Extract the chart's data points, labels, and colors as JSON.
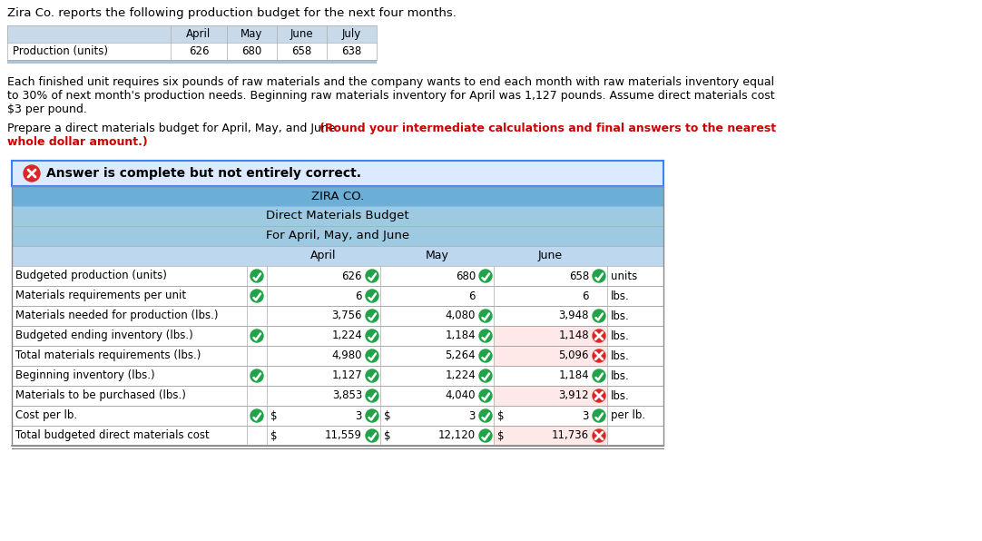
{
  "title_text": "Zira Co. reports the following production budget for the next four months.",
  "prod_table_headers": [
    "",
    "April",
    "May",
    "June",
    "July"
  ],
  "prod_table_row": [
    "Production (units)",
    "626",
    "680",
    "658",
    "638"
  ],
  "para1": "Each finished unit requires six pounds of raw materials and the company wants to end each month with raw materials inventory equal\nto 30% of next month's production needs. Beginning raw materials inventory for April was 1,127 pounds. Assume direct materials cost\n$3 per pound.",
  "para2_normal": "Prepare a direct materials budget for April, May, and June. ",
  "para2_bold_line1": "(Round your intermediate calculations and final answers to the nearest",
  "para2_bold_line2": "whole dollar amount.)",
  "answer_banner": "Answer is complete but not entirely correct.",
  "budget_title1": "ZIRA CO.",
  "budget_title2": "Direct Materials Budget",
  "budget_title3": "For April, May, and June",
  "rows": [
    {
      "label": "Budgeted production (units)",
      "check_label": true,
      "april": "626",
      "april_check": true,
      "may": "680",
      "may_check": true,
      "june": "658",
      "june_check": true,
      "june_wrong": false,
      "unit": "units",
      "has_dollar": false
    },
    {
      "label": "Materials requirements per unit",
      "check_label": true,
      "april": "6",
      "april_check": true,
      "may": "6",
      "may_check": false,
      "june": "6",
      "june_check": false,
      "june_wrong": false,
      "unit": "lbs.",
      "has_dollar": false
    },
    {
      "label": "Materials needed for production (lbs.)",
      "check_label": false,
      "april": "3,756",
      "april_check": true,
      "may": "4,080",
      "may_check": true,
      "june": "3,948",
      "june_check": true,
      "june_wrong": false,
      "unit": "lbs.",
      "has_dollar": false
    },
    {
      "label": "Budgeted ending inventory (lbs.)",
      "check_label": true,
      "april": "1,224",
      "april_check": true,
      "may": "1,184",
      "may_check": true,
      "june": "1,148",
      "june_check": false,
      "june_wrong": true,
      "unit": "lbs.",
      "has_dollar": false
    },
    {
      "label": "Total materials requirements (lbs.)",
      "check_label": false,
      "april": "4,980",
      "april_check": true,
      "may": "5,264",
      "may_check": true,
      "june": "5,096",
      "june_check": false,
      "june_wrong": true,
      "unit": "lbs.",
      "has_dollar": false
    },
    {
      "label": "Beginning inventory (lbs.)",
      "check_label": true,
      "april": "1,127",
      "april_check": true,
      "may": "1,224",
      "may_check": true,
      "june": "1,184",
      "june_check": true,
      "june_wrong": false,
      "unit": "lbs.",
      "has_dollar": false
    },
    {
      "label": "Materials to be purchased (lbs.)",
      "check_label": false,
      "april": "3,853",
      "april_check": true,
      "may": "4,040",
      "may_check": true,
      "june": "3,912",
      "june_check": false,
      "june_wrong": true,
      "unit": "lbs.",
      "has_dollar": false
    },
    {
      "label": "Cost per lb.",
      "check_label": true,
      "april": "3",
      "april_check": true,
      "may": "3",
      "may_check": true,
      "june": "3",
      "june_check": true,
      "june_wrong": false,
      "unit": "per lb.",
      "has_dollar": true
    },
    {
      "label": "Total budgeted direct materials cost",
      "check_label": false,
      "april": "11,559",
      "april_check": true,
      "may": "12,120",
      "may_check": true,
      "june": "11,736",
      "june_check": false,
      "june_wrong": true,
      "unit": "",
      "has_dollar": true,
      "is_total": true
    }
  ],
  "header_bg": "#6baed6",
  "subheader_bg": "#9ecae1",
  "col_header_bg": "#bdd7ee",
  "banner_bg": "#dbeafe",
  "banner_border": "#3b82f6",
  "green_check": "#22a34a",
  "red_x": "#dc2626",
  "bold_red_color": "#cc0000",
  "prod_header_bg": "#c8daea",
  "prod_bottom_stripe": "#a8c4d8"
}
